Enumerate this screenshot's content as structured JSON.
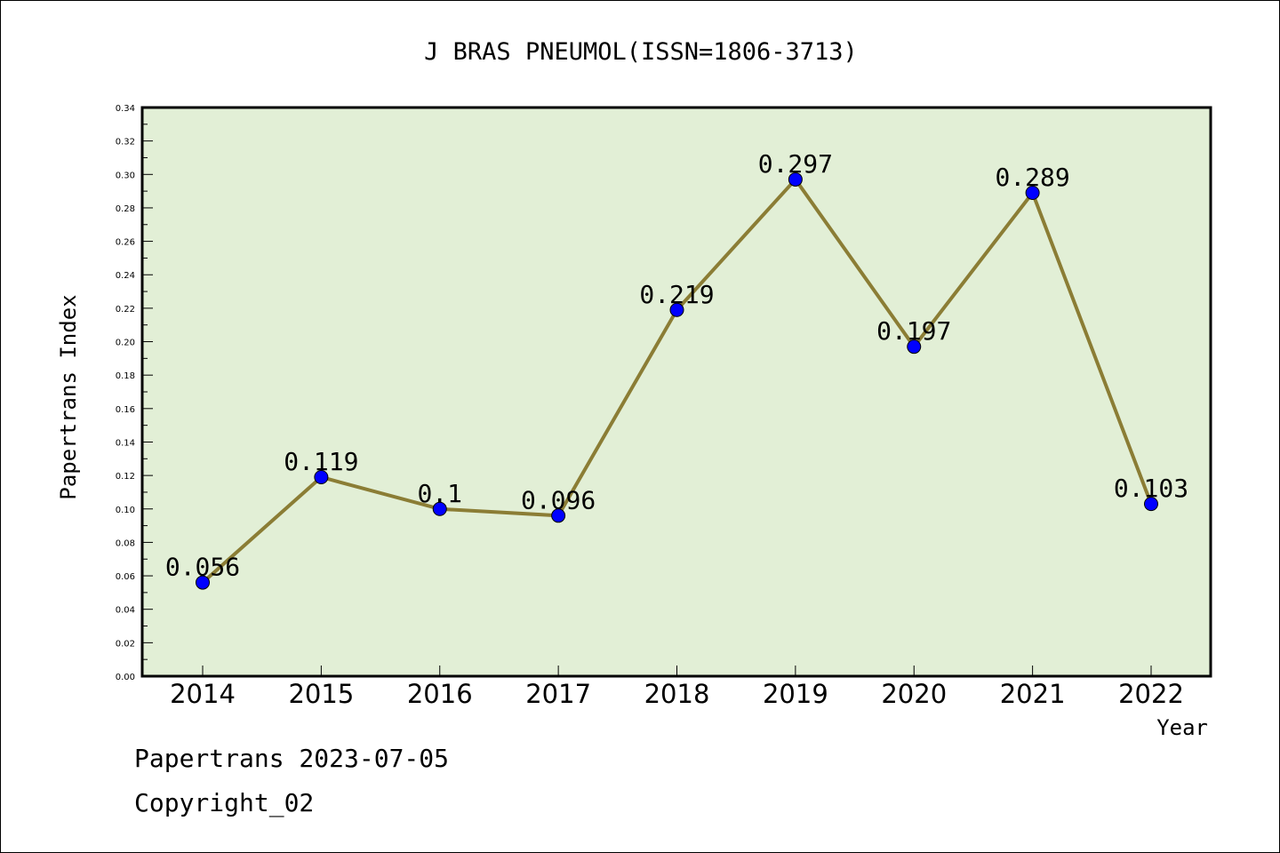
{
  "chart_data": {
    "type": "line",
    "title": "J BRAS PNEUMOL(ISSN=1806-3713)",
    "xlabel": "Year",
    "ylabel": "Papertrans Index",
    "categories": [
      "2014",
      "2015",
      "2016",
      "2017",
      "2018",
      "2019",
      "2020",
      "2021",
      "2022"
    ],
    "values": [
      0.056,
      0.119,
      0.1,
      0.096,
      0.219,
      0.297,
      0.197,
      0.289,
      0.103
    ],
    "data_labels": [
      "0.056",
      "0.119",
      "0.1",
      "0.096",
      "0.219",
      "0.297",
      "0.197",
      "0.289",
      "0.103"
    ],
    "ylim": [
      0,
      0.34
    ],
    "y_ticks": [
      "0.00",
      "0.02",
      "0.04",
      "0.06",
      "0.08",
      "0.10",
      "0.12",
      "0.14",
      "0.16",
      "0.18",
      "0.20",
      "0.22",
      "0.24",
      "0.26",
      "0.28",
      "0.30",
      "0.32",
      "0.34"
    ],
    "grid": false,
    "colors": {
      "plot_background": "#e2efd6",
      "line": "#8b7d35",
      "marker": "#0000ff",
      "axis": "#000000"
    }
  },
  "footer": {
    "line1": "Papertrans 2023-07-05",
    "line2": "Copyright_02"
  }
}
